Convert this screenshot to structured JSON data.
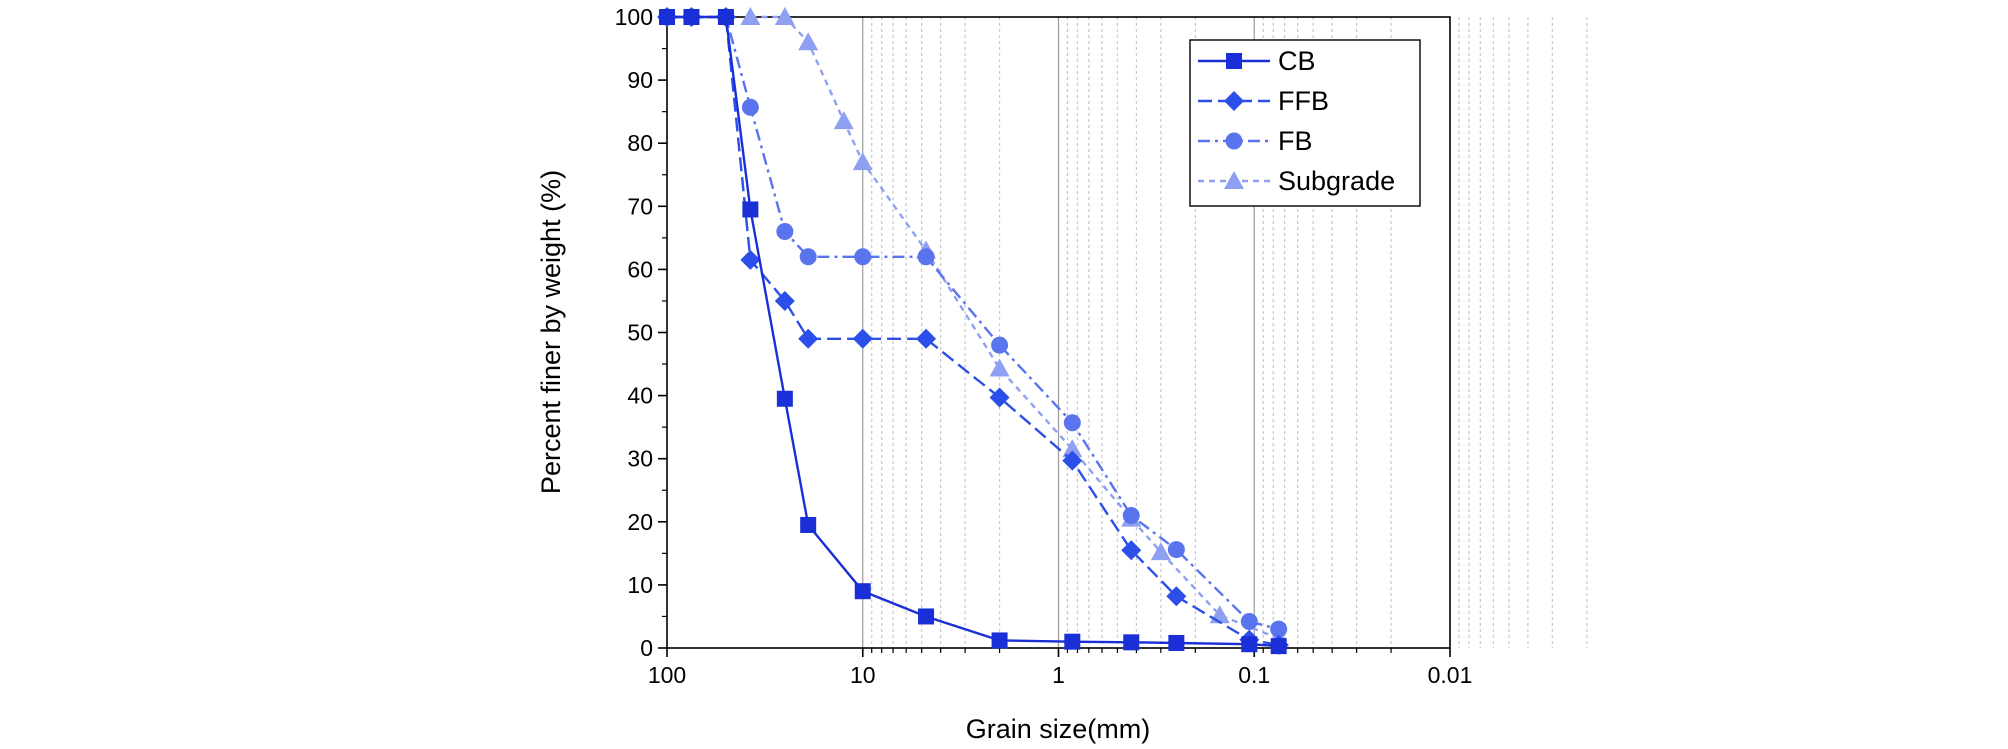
{
  "chart_data": {
    "type": "line",
    "title": "",
    "xlabel": "Grain size(mm)",
    "ylabel": "Percent finer by weight (%)",
    "x_scale": "log",
    "x_reversed": true,
    "xlim": [
      100,
      0.01
    ],
    "ylim": [
      0,
      100
    ],
    "x_ticks": [
      100,
      10,
      1,
      0.1,
      0.01
    ],
    "x_tick_labels": [
      "100",
      "10",
      "1",
      "0.1",
      "0.01"
    ],
    "y_ticks": [
      0,
      10,
      20,
      30,
      40,
      50,
      60,
      70,
      80,
      90,
      100
    ],
    "y_tick_labels": [
      "0",
      "10",
      "20",
      "30",
      "40",
      "50",
      "60",
      "70",
      "80",
      "90",
      "100"
    ],
    "grid": "vertical minor dotted, major solid",
    "legend_position": "top-right",
    "series": [
      {
        "name": "CB",
        "color": "#1a2fd6",
        "marker": "square",
        "line_style": "solid",
        "x": [
          100,
          75,
          50,
          37.5,
          25,
          19,
          10,
          4.75,
          2,
          0.85,
          0.425,
          0.25,
          0.106,
          0.075
        ],
        "y": [
          100,
          100,
          100,
          69.5,
          39.5,
          19.5,
          9,
          5,
          1.2,
          1,
          0.9,
          0.8,
          0.6,
          0.3
        ]
      },
      {
        "name": "FFB",
        "color": "#2b4fe8",
        "marker": "diamond",
        "line_style": "dash",
        "x": [
          100,
          75,
          50,
          37.5,
          25,
          19,
          10,
          4.75,
          2,
          0.85,
          0.425,
          0.25,
          0.106,
          0.075
        ],
        "y": [
          100,
          100,
          100,
          61.5,
          55,
          49,
          49,
          49,
          39.7,
          29.7,
          15.5,
          8.2,
          1.3,
          0.5
        ]
      },
      {
        "name": "FB",
        "color": "#5a74ee",
        "marker": "circle",
        "line_style": "dashdot",
        "x": [
          100,
          75,
          50,
          37.5,
          25,
          19,
          10,
          4.75,
          2,
          0.85,
          0.425,
          0.25,
          0.106,
          0.075
        ],
        "y": [
          100,
          100,
          100,
          85.7,
          66,
          62,
          62,
          62,
          48,
          35.7,
          21,
          15.6,
          4.2,
          3
        ]
      },
      {
        "name": "Subgrade",
        "color": "#8fa0f3",
        "marker": "triangle",
        "line_style": "short-dash",
        "x": [
          37.5,
          25,
          19,
          12.5,
          10,
          4.75,
          2,
          0.85,
          0.425,
          0.3,
          0.15,
          0.075
        ],
        "y": [
          100,
          100,
          96,
          83.5,
          77,
          63,
          44.3,
          31.5,
          20.5,
          15.2,
          5.2,
          1.5
        ]
      }
    ]
  }
}
